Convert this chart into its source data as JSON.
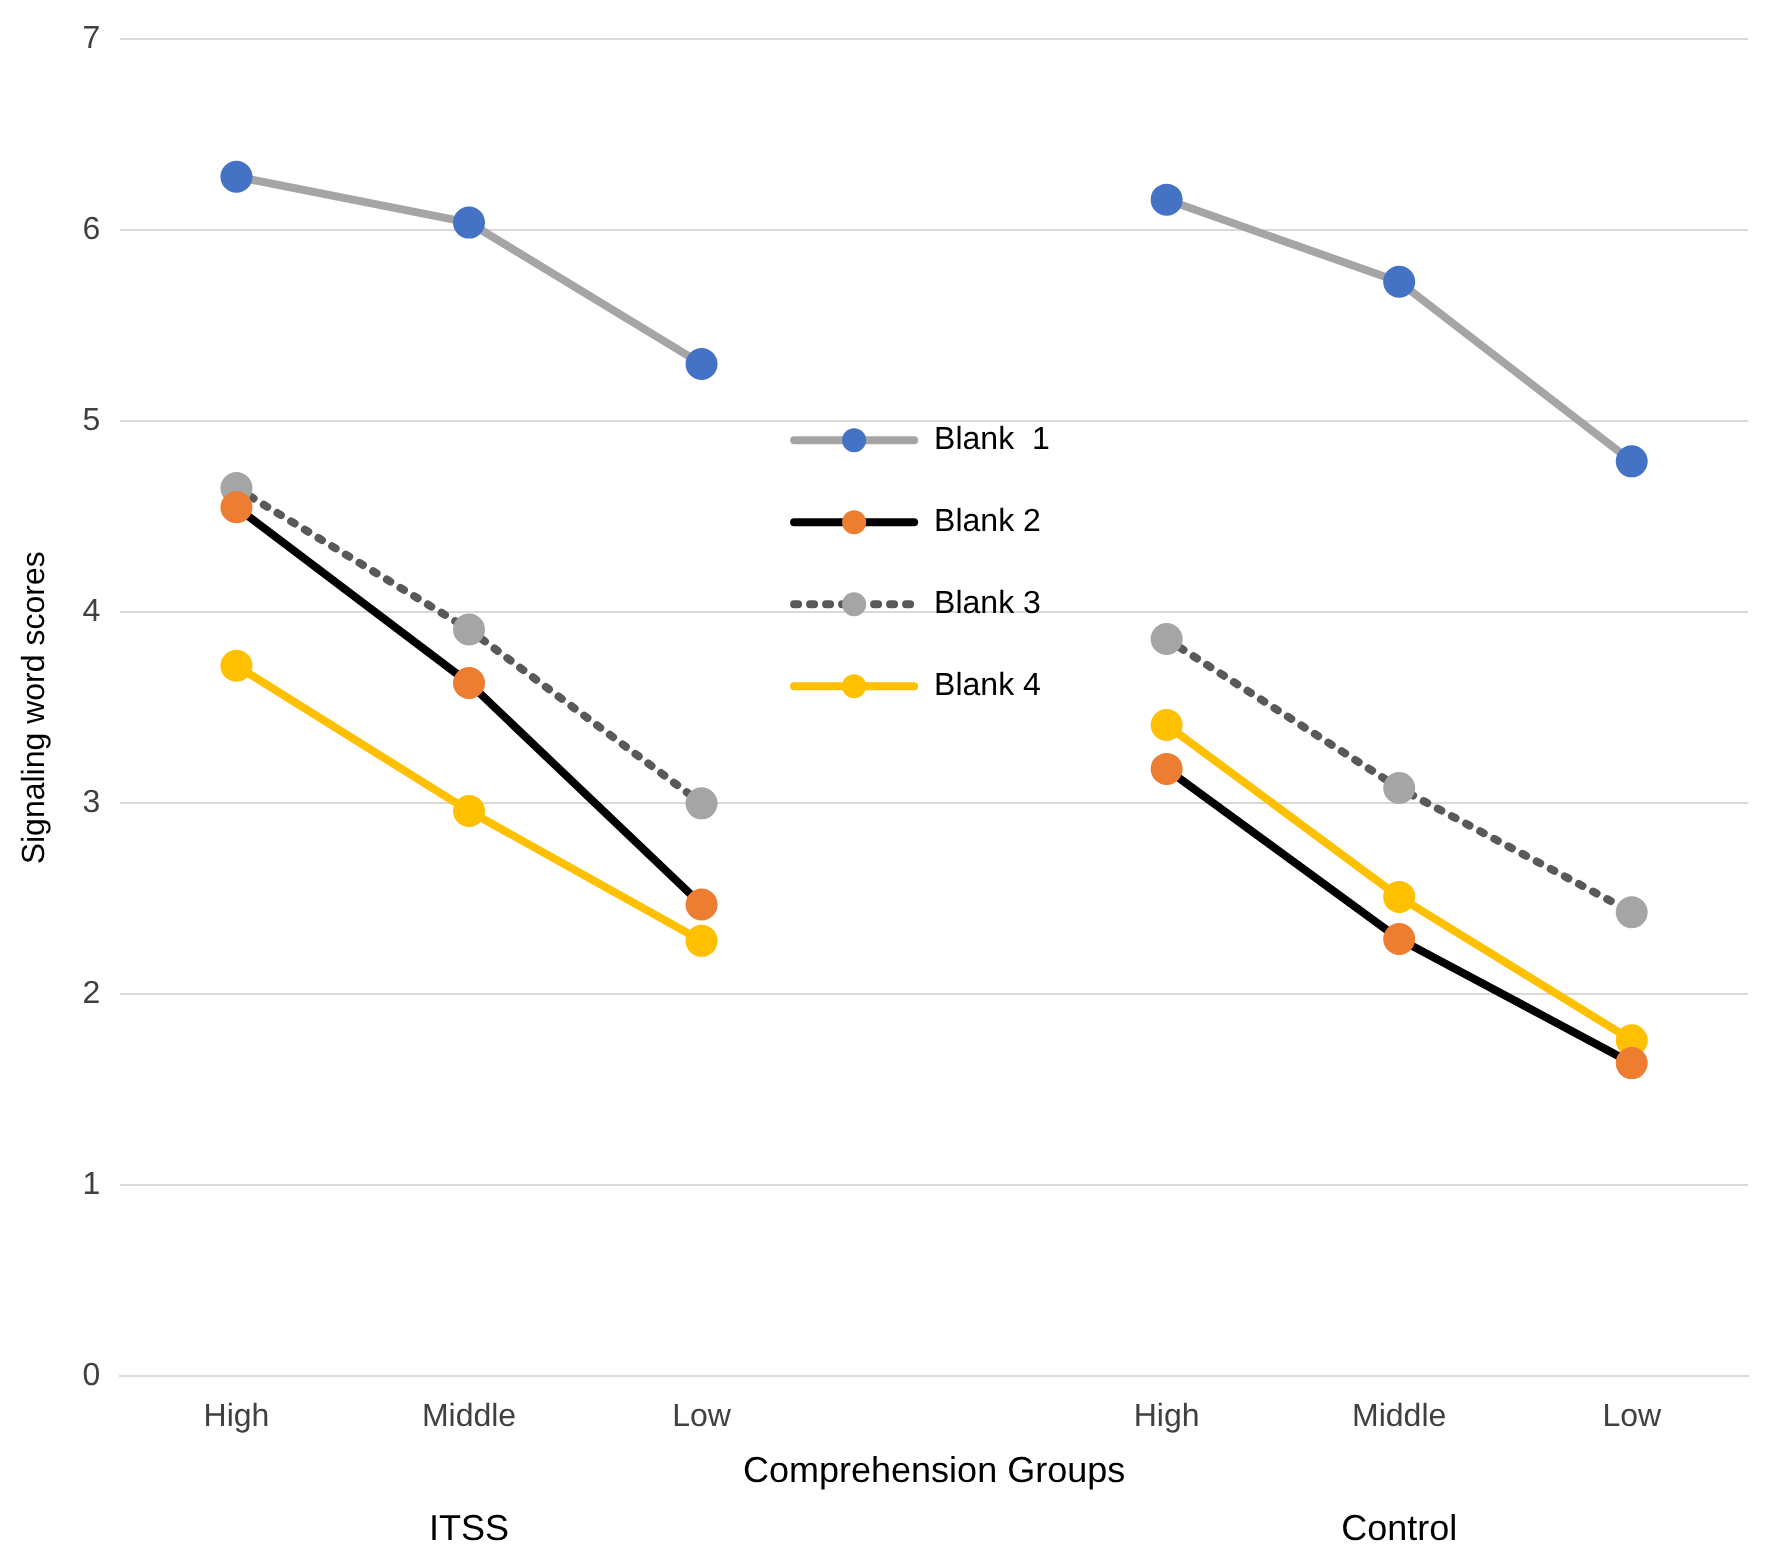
{
  "chart_data": {
    "type": "line",
    "xlabel": "Comprehension Groups",
    "ylabel": "Signaling word scores",
    "categories": [
      "High",
      "Middle",
      "Low",
      null,
      "High",
      "Middle",
      "Low"
    ],
    "series": [
      {
        "name": "Blank  1",
        "color": "#a5a5a5",
        "colors": [
          "#4472c4",
          "#4472c4",
          "#4472c4",
          null,
          "#4472c4",
          "#4472c4",
          "#4472c4"
        ],
        "values": [
          6.28,
          6.04,
          5.3,
          null,
          6.16,
          5.73,
          4.79
        ]
      },
      {
        "name": "Blank 2",
        "color": "#000000",
        "colors": [
          "#ed7d31",
          "#ed7d31",
          "#ed7d31",
          null,
          "#ed7d31",
          "#ed7d31",
          "#ed7d31"
        ],
        "values": [
          4.55,
          3.63,
          2.47,
          null,
          3.18,
          2.29,
          1.64
        ]
      },
      {
        "name": "Blank 3",
        "color": "#595959",
        "line_style": "dotted",
        "colors": [
          "#a5a5a5",
          "#a5a5a5",
          "#a5a5a5",
          null,
          "#a5a5a5",
          "#a5a5a5",
          "#a5a5a5"
        ],
        "values": [
          4.65,
          3.91,
          3.0,
          null,
          3.86,
          3.08,
          2.43
        ]
      },
      {
        "name": "Blank 4",
        "color": "#ffc000",
        "colors": [
          "#ffc000",
          "#ffc000",
          "#ffc000",
          null,
          "#ffc000",
          "#ffc000",
          "#ffc000"
        ],
        "values": [
          3.72,
          2.96,
          2.28,
          null,
          3.41,
          2.51,
          1.76
        ]
      }
    ],
    "ylim": [
      0,
      7
    ],
    "yticks": [
      0,
      1,
      2,
      3,
      4,
      5,
      6,
      7
    ],
    "grid": "y",
    "legend": "center",
    "marker": "circle",
    "annotations": [
      "ITSS",
      "Control"
    ]
  }
}
